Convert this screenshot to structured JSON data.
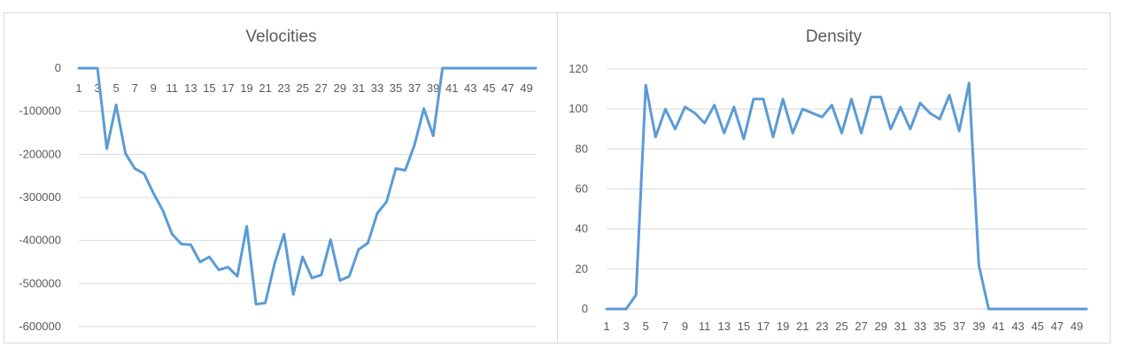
{
  "chart_data": [
    {
      "type": "line",
      "title": "Velocities",
      "xlabel": "",
      "ylabel": "",
      "ylim": [
        -600000,
        0
      ],
      "yticks": [
        0,
        -100000,
        -200000,
        -300000,
        -400000,
        -500000,
        -600000
      ],
      "ytick_labels": [
        "0",
        "-100000",
        "-200000",
        "-300000",
        "-400000",
        "-500000",
        "-600000"
      ],
      "xtick_labels": [
        "1",
        "3",
        "5",
        "7",
        "9",
        "11",
        "13",
        "15",
        "17",
        "19",
        "21",
        "23",
        "25",
        "27",
        "29",
        "31",
        "33",
        "35",
        "37",
        "39",
        "41",
        "43",
        "45",
        "47",
        "49"
      ],
      "x_axis_position": "top",
      "grid": true,
      "color": "#5b9bd5",
      "x": [
        1,
        2,
        3,
        4,
        5,
        6,
        7,
        8,
        9,
        10,
        11,
        12,
        13,
        14,
        15,
        16,
        17,
        18,
        19,
        20,
        21,
        22,
        23,
        24,
        25,
        26,
        27,
        28,
        29,
        30,
        31,
        32,
        33,
        34,
        35,
        36,
        37,
        38,
        39,
        40,
        41,
        42,
        43,
        44,
        45,
        46,
        47,
        48,
        49,
        50
      ],
      "values": [
        0,
        0,
        0,
        -187000,
        -85000,
        -198000,
        -233000,
        -245000,
        -290000,
        -330000,
        -385000,
        -408000,
        -410000,
        -450000,
        -438000,
        -468000,
        -462000,
        -483000,
        -367000,
        -548000,
        -545000,
        -453000,
        -385000,
        -525000,
        -438000,
        -487000,
        -480000,
        -398000,
        -493000,
        -483000,
        -421000,
        -406000,
        -337000,
        -310000,
        -233000,
        -237000,
        -178000,
        -94000,
        -157000,
        0,
        0,
        0,
        0,
        0,
        0,
        0,
        0,
        0,
        0,
        0
      ]
    },
    {
      "type": "line",
      "title": "Density",
      "xlabel": "",
      "ylabel": "",
      "ylim": [
        0,
        120
      ],
      "yticks": [
        0,
        20,
        40,
        60,
        80,
        100,
        120
      ],
      "ytick_labels": [
        "0",
        "20",
        "40",
        "60",
        "80",
        "100",
        "120"
      ],
      "xtick_labels": [
        "1",
        "3",
        "5",
        "7",
        "9",
        "11",
        "13",
        "15",
        "17",
        "19",
        "21",
        "23",
        "25",
        "27",
        "29",
        "31",
        "33",
        "35",
        "37",
        "39",
        "41",
        "43",
        "45",
        "47",
        "49"
      ],
      "x_axis_position": "bottom",
      "grid": true,
      "color": "#5b9bd5",
      "x": [
        1,
        2,
        3,
        4,
        5,
        6,
        7,
        8,
        9,
        10,
        11,
        12,
        13,
        14,
        15,
        16,
        17,
        18,
        19,
        20,
        21,
        22,
        23,
        24,
        25,
        26,
        27,
        28,
        29,
        30,
        31,
        32,
        33,
        34,
        35,
        36,
        37,
        38,
        39,
        40,
        41,
        42,
        43,
        44,
        45,
        46,
        47,
        48,
        49,
        50
      ],
      "values": [
        0,
        0,
        0,
        7,
        112,
        86,
        100,
        90,
        101,
        98,
        93,
        102,
        88,
        101,
        85,
        105,
        105,
        86,
        105,
        88,
        100,
        98,
        96,
        102,
        88,
        105,
        88,
        106,
        106,
        90,
        101,
        90,
        103,
        98,
        95,
        107,
        89,
        113,
        22,
        0,
        0,
        0,
        0,
        0,
        0,
        0,
        0,
        0,
        0,
        0
      ]
    }
  ]
}
